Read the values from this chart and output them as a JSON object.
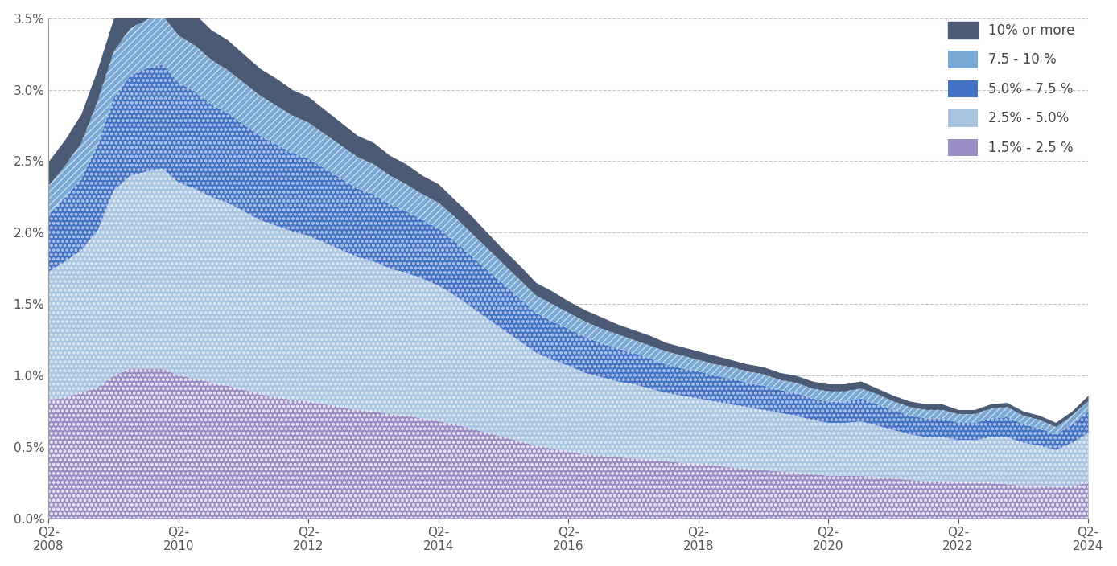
{
  "ylim": [
    0,
    0.035
  ],
  "yticks": [
    0.0,
    0.005,
    0.01,
    0.015,
    0.02,
    0.025,
    0.03,
    0.035
  ],
  "background_color": "#ffffff",
  "grid_color": "#b0b0b0",
  "xtick_positions": [
    0,
    8,
    16,
    24,
    32,
    40,
    48,
    56,
    64
  ],
  "xtick_labels": [
    "Q2-\n2008",
    "Q2-\n2010",
    "Q2-\n2012",
    "Q2-\n2014",
    "Q2-\n2016",
    "Q2-\n2018",
    "Q2-\n2020",
    "Q2-\n2022",
    "Q2-\n2024"
  ],
  "legend_labels": [
    "10% or more",
    "7.5 - 10 %",
    "5.0% - 7.5 %",
    "2.5% - 5.0%",
    "1.5% - 2.5 %"
  ],
  "s1_1525": [
    0.0083,
    0.0085,
    0.0088,
    0.0092,
    0.01,
    0.0105,
    0.0105,
    0.0105,
    0.01,
    0.0098,
    0.0095,
    0.0093,
    0.009,
    0.0087,
    0.0085,
    0.0083,
    0.0082,
    0.008,
    0.0078,
    0.0076,
    0.0075,
    0.0073,
    0.0072,
    0.007,
    0.0068,
    0.0066,
    0.0063,
    0.006,
    0.0057,
    0.0054,
    0.0051,
    0.0049,
    0.0047,
    0.0045,
    0.0044,
    0.0043,
    0.0042,
    0.0041,
    0.004,
    0.0039,
    0.0038,
    0.0037,
    0.0036,
    0.0035,
    0.0034,
    0.0033,
    0.0032,
    0.0031,
    0.003,
    0.003,
    0.003,
    0.0029,
    0.0028,
    0.0027,
    0.0026,
    0.0026,
    0.0025,
    0.0025,
    0.0025,
    0.0024,
    0.0023,
    0.0023,
    0.0022,
    0.0023,
    0.0025
  ],
  "s2_2550": [
    0.009,
    0.0095,
    0.01,
    0.011,
    0.013,
    0.0135,
    0.0138,
    0.014,
    0.0135,
    0.0133,
    0.013,
    0.0128,
    0.0125,
    0.0122,
    0.012,
    0.0118,
    0.0116,
    0.0113,
    0.011,
    0.0107,
    0.0105,
    0.0102,
    0.01,
    0.0098,
    0.0095,
    0.009,
    0.0085,
    0.008,
    0.0075,
    0.007,
    0.0065,
    0.0062,
    0.006,
    0.0057,
    0.0055,
    0.0053,
    0.0052,
    0.005,
    0.0048,
    0.0047,
    0.0046,
    0.0045,
    0.0044,
    0.0043,
    0.0042,
    0.0041,
    0.004,
    0.0038,
    0.0037,
    0.0037,
    0.0038,
    0.0036,
    0.0034,
    0.0032,
    0.0031,
    0.0031,
    0.003,
    0.003,
    0.0032,
    0.0033,
    0.003,
    0.0028,
    0.0026,
    0.003,
    0.0035
  ],
  "s3_5075": [
    0.004,
    0.0045,
    0.005,
    0.006,
    0.0065,
    0.007,
    0.0072,
    0.0073,
    0.007,
    0.0068,
    0.0065,
    0.0063,
    0.0061,
    0.0059,
    0.0057,
    0.0055,
    0.0054,
    0.0052,
    0.005,
    0.0048,
    0.0047,
    0.0045,
    0.0043,
    0.0041,
    0.004,
    0.0038,
    0.0036,
    0.0034,
    0.0032,
    0.003,
    0.0028,
    0.0027,
    0.0026,
    0.0025,
    0.0024,
    0.0023,
    0.0022,
    0.0021,
    0.002,
    0.0019,
    0.0019,
    0.0018,
    0.0018,
    0.0017,
    0.0017,
    0.0016,
    0.0016,
    0.0015,
    0.0015,
    0.0015,
    0.0016,
    0.0015,
    0.0014,
    0.0013,
    0.0013,
    0.0013,
    0.0012,
    0.0012,
    0.0013,
    0.0014,
    0.0013,
    0.0012,
    0.0011,
    0.0013,
    0.0015
  ],
  "s4_75100": [
    0.002,
    0.0022,
    0.0025,
    0.003,
    0.0032,
    0.0033,
    0.0034,
    0.0034,
    0.0033,
    0.0032,
    0.0031,
    0.003,
    0.0029,
    0.0028,
    0.0027,
    0.0026,
    0.0025,
    0.0024,
    0.0023,
    0.0022,
    0.0021,
    0.002,
    0.0019,
    0.0018,
    0.0018,
    0.0017,
    0.0016,
    0.0015,
    0.0014,
    0.0013,
    0.0012,
    0.0012,
    0.0011,
    0.0011,
    0.001,
    0.001,
    0.0009,
    0.0009,
    0.0009,
    0.0009,
    0.0008,
    0.0008,
    0.0008,
    0.0008,
    0.0008,
    0.0007,
    0.0007,
    0.0007,
    0.0007,
    0.0007,
    0.0007,
    0.0007,
    0.0006,
    0.0006,
    0.0006,
    0.0006,
    0.0006,
    0.0006,
    0.0007,
    0.0007,
    0.0006,
    0.0006,
    0.0005,
    0.0006,
    0.0007
  ],
  "s5_10plus": [
    0.0017,
    0.0018,
    0.002,
    0.0022,
    0.0023,
    0.0024,
    0.0024,
    0.0024,
    0.0023,
    0.0022,
    0.0021,
    0.0021,
    0.002,
    0.0019,
    0.0019,
    0.0018,
    0.0018,
    0.0017,
    0.0016,
    0.0015,
    0.0015,
    0.0014,
    0.0014,
    0.0013,
    0.0013,
    0.0012,
    0.0012,
    0.0011,
    0.001,
    0.001,
    0.0009,
    0.0009,
    0.0008,
    0.0008,
    0.0008,
    0.0007,
    0.0007,
    0.0007,
    0.0006,
    0.0006,
    0.0006,
    0.0006,
    0.0005,
    0.0005,
    0.0005,
    0.0005,
    0.0005,
    0.0005,
    0.0005,
    0.0005,
    0.0005,
    0.0004,
    0.0004,
    0.0004,
    0.0004,
    0.0004,
    0.0003,
    0.0003,
    0.0003,
    0.0003,
    0.0003,
    0.0003,
    0.0003,
    0.0003,
    0.0004
  ]
}
